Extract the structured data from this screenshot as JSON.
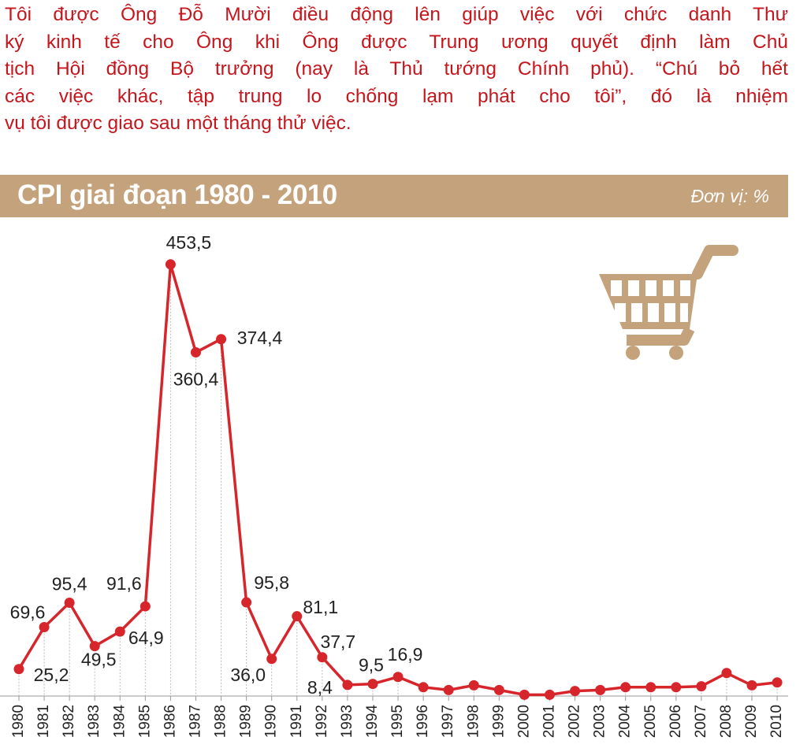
{
  "intro": [
    "Tôi được Ông Đỗ Mười điều động lên giúp việc với chức danh Thư",
    "ký kinh tế cho Ông khi Ông được Trung ương quyết định làm Chủ",
    "tịch Hội đồng Bộ trưởng (nay là Thủ tướng Chính phủ). “Chú bỏ hết",
    "các việc khác, tập trung lo chống lạm phát cho tôi”, đó là nhiệm",
    "vụ tôi được giao sau một tháng thử việc."
  ],
  "chart_data": {
    "type": "line",
    "title": "CPI giai đoạn 1980 - 2010",
    "unit_label": "Đơn vị: %",
    "categories": [
      "1980",
      "1981",
      "1982",
      "1983",
      "1984",
      "1985",
      "1986",
      "1987",
      "1988",
      "1989",
      "1990",
      "1991",
      "1992",
      "1993",
      "1994",
      "1995",
      "1996",
      "1997",
      "1998",
      "1999",
      "2000",
      "2001",
      "2002",
      "2003",
      "2004",
      "2005",
      "2006",
      "2007",
      "2008",
      "2009",
      "2010"
    ],
    "values": [
      25.2,
      69.6,
      95.4,
      49.5,
      64.9,
      91.6,
      453.5,
      360.4,
      374.4,
      95.8,
      36.0,
      81.1,
      37.7,
      8.4,
      9.5,
      16.9,
      6,
      3,
      8,
      3,
      -2,
      -2,
      2,
      3,
      6,
      6,
      6,
      7,
      21,
      8,
      11
    ],
    "value_labels": [
      "25,2",
      "69,6",
      "95,4",
      "49,5",
      "64,9",
      "91,6",
      "453,5",
      "360,4",
      "374,4",
      "95,8",
      "36,0",
      "81,1",
      "37,7",
      "8,4",
      "9,5",
      "16,9",
      null,
      null,
      null,
      null,
      null,
      null,
      null,
      null,
      null,
      null,
      null,
      null,
      null,
      null,
      null
    ],
    "color": "#d7262b",
    "ylim": [
      -5,
      500
    ]
  }
}
